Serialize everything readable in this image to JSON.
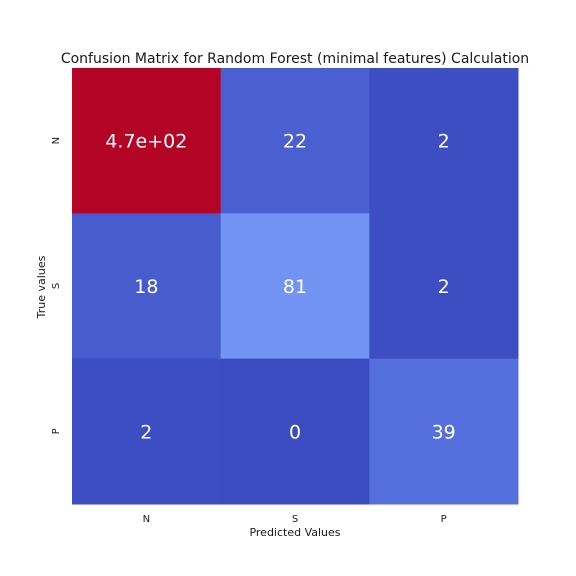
{
  "chart_data": {
    "type": "heatmap",
    "title": "Confusion Matrix for Random Forest (minimal features) Calculation",
    "xlabel": "Predicted Values",
    "ylabel": "True values",
    "x_categories": [
      "N",
      "S",
      "P"
    ],
    "y_categories": [
      "N",
      "S",
      "P"
    ],
    "values": [
      [
        470,
        22,
        2
      ],
      [
        18,
        81,
        2
      ],
      [
        2,
        0,
        39
      ]
    ],
    "annotations": [
      [
        "4.7e+02",
        "22",
        "2"
      ],
      [
        "18",
        "81",
        "2"
      ],
      [
        "2",
        "0",
        "39"
      ]
    ],
    "colormap": "coolwarm",
    "colorbar": false,
    "grid": false
  }
}
